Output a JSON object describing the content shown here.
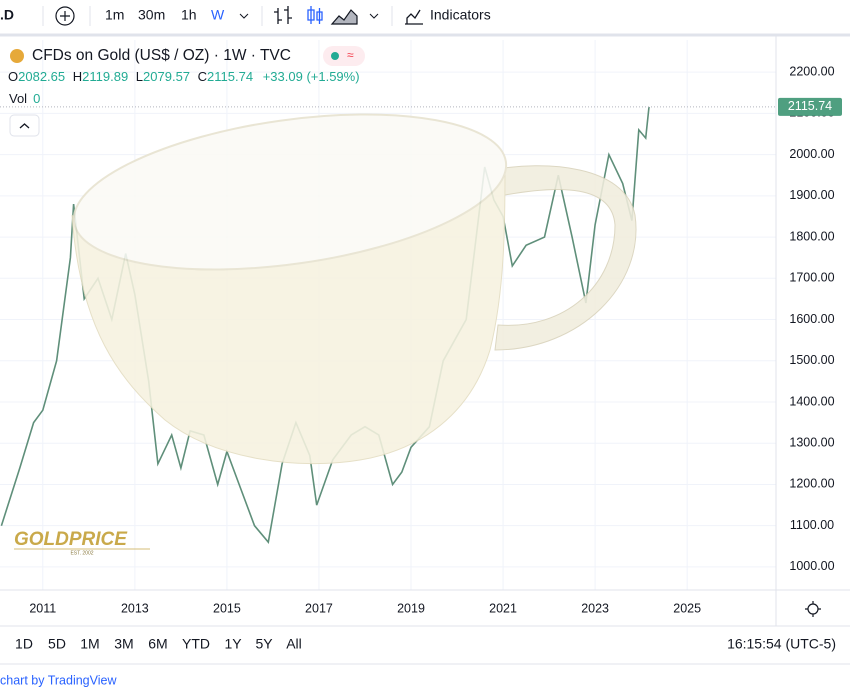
{
  "toolbar": {
    "symbol": ".D",
    "intervals": [
      "1m",
      "30m",
      "1h",
      "W"
    ],
    "indicators": "Indicators"
  },
  "legend": {
    "title": "CFDs on Gold (US$ / OZ) · 1W · TVC",
    "ohlc": [
      {
        "label": "O",
        "value": "2082.65"
      },
      {
        "label": "H",
        "value": "2119.89"
      },
      {
        "label": "L",
        "value": "2079.57"
      },
      {
        "label": "C",
        "value": "2115.74"
      }
    ],
    "change": "+33.09 (+1.59%)",
    "vol_label": "Vol",
    "vol_value": "0"
  },
  "watermark": {
    "brand": "GOLDPRICE",
    "est": "EST. 2002"
  },
  "chart_data": {
    "type": "line",
    "color": "#5f8f7a",
    "x": [
      2010.1,
      2010.5,
      2010.8,
      2011.0,
      2011.3,
      2011.6,
      2011.67,
      2011.9,
      2012.2,
      2012.5,
      2012.8,
      2013.0,
      2013.3,
      2013.5,
      2013.8,
      2014.0,
      2014.2,
      2014.5,
      2014.8,
      2015.0,
      2015.3,
      2015.6,
      2015.9,
      2016.2,
      2016.5,
      2016.8,
      2016.95,
      2017.3,
      2017.7,
      2018.0,
      2018.3,
      2018.6,
      2018.8,
      2019.0,
      2019.4,
      2019.7,
      2020.0,
      2020.2,
      2020.6,
      2020.8,
      2021.0,
      2021.2,
      2021.5,
      2021.9,
      2022.2,
      2022.5,
      2022.8,
      2023.0,
      2023.3,
      2023.6,
      2023.8,
      2023.95,
      2024.1,
      2024.17
    ],
    "values": [
      1100,
      1240,
      1350,
      1380,
      1500,
      1750,
      1880,
      1650,
      1700,
      1600,
      1760,
      1660,
      1450,
      1250,
      1320,
      1240,
      1330,
      1320,
      1200,
      1280,
      1190,
      1100,
      1060,
      1250,
      1350,
      1270,
      1150,
      1260,
      1320,
      1340,
      1320,
      1200,
      1230,
      1290,
      1340,
      1500,
      1560,
      1600,
      1970,
      1890,
      1850,
      1730,
      1780,
      1800,
      1950,
      1800,
      1640,
      1830,
      2000,
      1930,
      1840,
      2060,
      2040,
      2115.74
    ],
    "last_label": "2115.74",
    "xlim": [
      2010.07,
      2026.93
    ],
    "ylim": [
      944,
      2278
    ],
    "xticks": [
      2011,
      2013,
      2015,
      2017,
      2019,
      2021,
      2023,
      2025
    ],
    "yticks": [
      {
        "value": 1000,
        "label": "1000.00"
      },
      {
        "value": 1100,
        "label": "1100.00"
      },
      {
        "value": 1200,
        "label": "1200.00"
      },
      {
        "value": 1300,
        "label": "1300.00"
      },
      {
        "value": 1400,
        "label": "1400.00"
      },
      {
        "value": 1500,
        "label": "1500.00"
      },
      {
        "value": 1600,
        "label": "1600.00"
      },
      {
        "value": 1700,
        "label": "1700.00"
      },
      {
        "value": 1800,
        "label": "1800.00"
      },
      {
        "value": 1900,
        "label": "1900.00"
      },
      {
        "value": 2000,
        "label": "2000.00"
      },
      {
        "value": 2100,
        "label": "2100.00"
      },
      {
        "value": 2200,
        "label": "2200.00"
      }
    ],
    "grid": true
  },
  "footer": {
    "ranges": [
      "1D",
      "5D",
      "1M",
      "3M",
      "6M",
      "YTD",
      "1Y",
      "5Y",
      "All"
    ],
    "time": "16:15:54 (UTC-5)",
    "attribution": "chart by TradingView"
  }
}
